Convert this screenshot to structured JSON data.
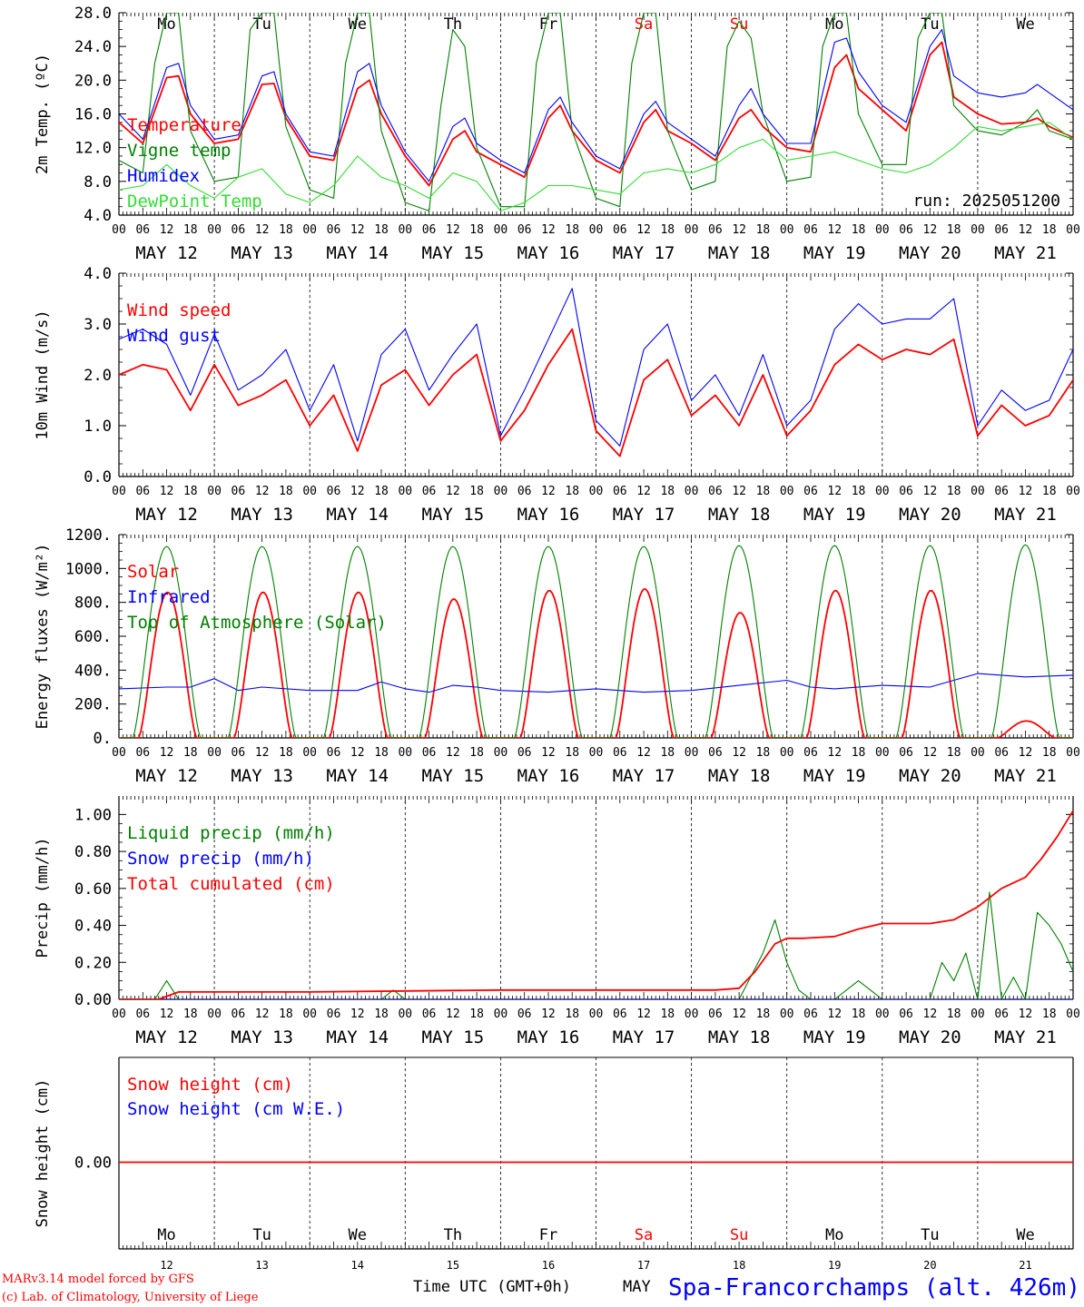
{
  "footer": {
    "model_line": "MARv3.14 model forced by GFS",
    "credit_line": "(c) Lab. of Climatology, University of Liege",
    "xaxis_title": "Time UTC (GMT+0h)",
    "xaxis_month": "MAY",
    "station": "Spa-Francorchamps (alt. 426m)"
  },
  "colors": {
    "red": "#ff0000",
    "green": "#008000",
    "blue": "#0000ff",
    "lightgreen": "#33dd33",
    "axis": "#000000"
  },
  "days": {
    "top_names": [
      "Mo",
      "Tu",
      "We",
      "Th",
      "Fr",
      "Sa",
      "Su",
      "Mo",
      "Tu",
      "We"
    ],
    "weekend_flags": [
      false,
      false,
      false,
      false,
      false,
      true,
      true,
      false,
      false,
      false
    ],
    "date_labels": [
      "MAY 12",
      "MAY 13",
      "MAY 14",
      "MAY 15",
      "MAY 16",
      "MAY 17",
      "MAY 18",
      "MAY 19",
      "MAY 20",
      "MAY 21"
    ],
    "day_numbers": [
      "12",
      "13",
      "14",
      "15",
      "16",
      "17",
      "18",
      "19",
      "20",
      "21"
    ],
    "hour_ticks": [
      "00",
      "06",
      "12",
      "18"
    ],
    "end_tick": "00"
  },
  "chart_data": [
    {
      "id": "temperature",
      "type": "line",
      "ylabel": "2m Temp. (ºC)",
      "ylim": [
        4.0,
        28.0
      ],
      "yticks": [
        "4.0",
        "8.0",
        "12.0",
        "16.0",
        "20.0",
        "24.0",
        "28.0"
      ],
      "xlim_hours": [
        0,
        240
      ],
      "run_label": "run: 2025051200",
      "series": [
        {
          "name": "Temperature",
          "color": "red",
          "x": [
            0,
            6,
            12,
            15,
            18,
            24,
            30,
            36,
            39,
            42,
            48,
            54,
            60,
            63,
            66,
            72,
            78,
            84,
            87,
            90,
            96,
            102,
            108,
            111,
            114,
            120,
            126,
            132,
            135,
            138,
            144,
            150,
            156,
            159,
            162,
            168,
            174,
            180,
            183,
            186,
            192,
            198,
            204,
            207,
            210,
            216,
            222,
            228,
            231,
            234,
            240
          ],
          "y": [
            15.0,
            12.5,
            20.3,
            20.5,
            16.0,
            12.5,
            13.0,
            19.5,
            19.6,
            15.5,
            11.0,
            10.5,
            19.0,
            20.0,
            16.0,
            11.0,
            7.5,
            13.0,
            14.0,
            11.5,
            10.0,
            8.5,
            15.5,
            17.0,
            14.0,
            10.5,
            9.0,
            15.0,
            16.5,
            14.0,
            12.5,
            10.5,
            15.5,
            16.5,
            14.5,
            12.0,
            11.5,
            21.5,
            23.0,
            19.0,
            16.5,
            14.0,
            23.0,
            24.5,
            18.0,
            16.0,
            14.8,
            15.0,
            15.5,
            14.5,
            13.2
          ]
        },
        {
          "name": "Vigne temp",
          "color": "green",
          "x": [
            0,
            6,
            9,
            12,
            15,
            18,
            24,
            30,
            33,
            36,
            39,
            42,
            48,
            54,
            57,
            60,
            63,
            66,
            72,
            78,
            81,
            84,
            87,
            90,
            96,
            102,
            105,
            108,
            111,
            114,
            120,
            126,
            129,
            132,
            135,
            138,
            144,
            150,
            153,
            156,
            159,
            162,
            168,
            174,
            177,
            180,
            183,
            186,
            192,
            198,
            201,
            204,
            207,
            210,
            216,
            222,
            228,
            231,
            234,
            240
          ],
          "y": [
            10.5,
            9.0,
            22.0,
            28.0,
            28.0,
            14.0,
            8.0,
            8.5,
            26.0,
            28.0,
            28.0,
            14.5,
            7.0,
            6.0,
            22.0,
            28.0,
            28.0,
            14.0,
            5.5,
            4.5,
            17.0,
            26.0,
            24.0,
            12.0,
            5.0,
            5.0,
            22.0,
            28.0,
            28.0,
            14.0,
            6.0,
            5.0,
            22.0,
            28.0,
            28.0,
            14.0,
            7.0,
            8.0,
            24.0,
            27.0,
            25.0,
            16.0,
            8.0,
            8.5,
            24.0,
            28.0,
            28.0,
            16.0,
            10.0,
            10.0,
            25.0,
            28.0,
            28.0,
            17.0,
            14.0,
            13.5,
            15.0,
            16.5,
            14.0,
            13.0
          ]
        },
        {
          "name": "Humidex",
          "color": "blue",
          "x": [
            0,
            6,
            12,
            15,
            18,
            24,
            30,
            36,
            39,
            42,
            48,
            54,
            60,
            63,
            66,
            72,
            78,
            84,
            87,
            90,
            96,
            102,
            108,
            111,
            114,
            120,
            126,
            132,
            135,
            138,
            144,
            150,
            156,
            159,
            162,
            168,
            174,
            180,
            183,
            186,
            192,
            198,
            204,
            207,
            210,
            216,
            222,
            228,
            231,
            234,
            240
          ],
          "y": [
            16.0,
            13.0,
            21.5,
            22.0,
            17.0,
            13.0,
            13.5,
            20.5,
            21.0,
            16.0,
            11.5,
            11.0,
            21.0,
            22.0,
            17.0,
            11.5,
            8.0,
            14.5,
            15.5,
            12.5,
            10.5,
            9.0,
            16.5,
            18.0,
            15.0,
            11.0,
            9.5,
            16.0,
            17.5,
            15.0,
            13.0,
            11.0,
            17.0,
            19.0,
            16.0,
            12.5,
            12.5,
            24.5,
            25.0,
            21.0,
            17.0,
            15.0,
            24.0,
            26.0,
            20.5,
            18.5,
            18.0,
            18.5,
            19.5,
            18.5,
            16.5
          ]
        },
        {
          "name": "DewPoint Temp",
          "color": "lightgreen",
          "x": [
            0,
            6,
            12,
            18,
            24,
            30,
            36,
            42,
            48,
            54,
            60,
            66,
            72,
            78,
            84,
            90,
            96,
            102,
            108,
            114,
            120,
            126,
            132,
            138,
            144,
            150,
            156,
            162,
            168,
            174,
            180,
            186,
            192,
            198,
            204,
            210,
            216,
            222,
            228,
            234,
            240
          ],
          "y": [
            7.0,
            7.5,
            10.0,
            7.5,
            6.0,
            8.5,
            9.5,
            6.5,
            5.5,
            7.5,
            11.0,
            8.5,
            7.5,
            6.0,
            9.0,
            8.0,
            4.5,
            5.5,
            7.5,
            7.5,
            7.0,
            6.5,
            9.0,
            9.5,
            9.0,
            10.0,
            12.0,
            13.0,
            10.5,
            11.0,
            11.5,
            10.5,
            9.5,
            9.0,
            10.0,
            12.0,
            14.5,
            14.0,
            14.5,
            15.0,
            13.0
          ]
        }
      ]
    },
    {
      "id": "wind",
      "type": "line",
      "ylabel": "10m Wind (m/s)",
      "ylim": [
        0.0,
        4.0
      ],
      "yticks": [
        "0.0",
        "1.0",
        "2.0",
        "3.0",
        "4.0"
      ],
      "xlim_hours": [
        0,
        240
      ],
      "series": [
        {
          "name": "Wind speed",
          "color": "red",
          "x": [
            0,
            6,
            12,
            18,
            24,
            30,
            36,
            42,
            48,
            54,
            60,
            66,
            72,
            78,
            84,
            90,
            96,
            102,
            108,
            114,
            120,
            126,
            132,
            138,
            144,
            150,
            156,
            162,
            168,
            174,
            180,
            186,
            192,
            198,
            204,
            210,
            216,
            222,
            228,
            234,
            240
          ],
          "y": [
            2.0,
            2.2,
            2.1,
            1.3,
            2.2,
            1.4,
            1.6,
            1.9,
            1.0,
            1.6,
            0.5,
            1.8,
            2.1,
            1.4,
            2.0,
            2.4,
            0.7,
            1.3,
            2.2,
            2.9,
            0.9,
            0.4,
            1.9,
            2.3,
            1.2,
            1.6,
            1.0,
            2.0,
            0.8,
            1.3,
            2.2,
            2.6,
            2.3,
            2.5,
            2.4,
            2.7,
            0.8,
            1.4,
            1.0,
            1.2,
            1.9
          ]
        },
        {
          "name": "Wind gust",
          "color": "blue",
          "x": [
            0,
            6,
            12,
            18,
            24,
            30,
            36,
            42,
            48,
            54,
            60,
            66,
            72,
            78,
            84,
            90,
            96,
            102,
            108,
            114,
            120,
            126,
            132,
            138,
            144,
            150,
            156,
            162,
            168,
            174,
            180,
            186,
            192,
            198,
            204,
            210,
            216,
            222,
            228,
            234,
            240
          ],
          "y": [
            2.7,
            2.9,
            2.6,
            1.6,
            2.8,
            1.7,
            2.0,
            2.5,
            1.3,
            2.2,
            0.7,
            2.4,
            2.9,
            1.7,
            2.4,
            3.0,
            0.8,
            1.7,
            2.7,
            3.7,
            1.1,
            0.6,
            2.5,
            3.0,
            1.5,
            2.0,
            1.2,
            2.4,
            1.0,
            1.5,
            2.9,
            3.4,
            3.0,
            3.1,
            3.1,
            3.5,
            1.0,
            1.7,
            1.3,
            1.5,
            2.5
          ]
        }
      ]
    },
    {
      "id": "energy",
      "type": "line",
      "ylabel": "Energy fluxes (W/m²)",
      "ylim": [
        0,
        1200
      ],
      "yticks": [
        "0.",
        "200.",
        "400.",
        "600.",
        "800.",
        "1000.",
        "1200."
      ],
      "xlim_hours": [
        0,
        240
      ],
      "peaks": {
        "solar": [
          860,
          860,
          860,
          820,
          870,
          880,
          740,
          870,
          870,
          100
        ],
        "toa": [
          1130,
          1130,
          1130,
          1130,
          1130,
          1130,
          1135,
          1135,
          1135,
          1140
        ]
      },
      "series": [
        {
          "name": "Solar",
          "color": "red"
        },
        {
          "name": "Infrared",
          "color": "blue",
          "x": [
            0,
            12,
            18,
            24,
            30,
            36,
            48,
            60,
            66,
            72,
            78,
            84,
            90,
            96,
            108,
            120,
            132,
            144,
            156,
            168,
            174,
            180,
            192,
            204,
            210,
            216,
            228,
            240
          ],
          "y": [
            290,
            300,
            300,
            350,
            280,
            300,
            280,
            280,
            330,
            290,
            270,
            310,
            300,
            280,
            270,
            290,
            270,
            280,
            310,
            340,
            300,
            290,
            310,
            300,
            340,
            380,
            360,
            370
          ]
        },
        {
          "name": "Top of Atmosphere (Solar)",
          "color": "green"
        }
      ]
    },
    {
      "id": "precip",
      "type": "line",
      "ylabel": "Precip (mm/h)",
      "ylim": [
        0.0,
        1.1
      ],
      "yticks": [
        "0.00",
        "0.20",
        "0.40",
        "0.60",
        "0.80",
        "1.00"
      ],
      "xlim_hours": [
        0,
        240
      ],
      "series": [
        {
          "name": "Liquid precip (mm/h)",
          "color": "green",
          "x": [
            0,
            9,
            12,
            15,
            18,
            66,
            69,
            72,
            156,
            162,
            165,
            168,
            171,
            174,
            180,
            186,
            189,
            192,
            204,
            207,
            210,
            213,
            216,
            219,
            222,
            225,
            228,
            231,
            234,
            237,
            240
          ],
          "y": [
            0,
            0,
            0.1,
            0,
            0,
            0,
            0.05,
            0,
            0,
            0.25,
            0.43,
            0.2,
            0.05,
            0,
            0,
            0.1,
            0.05,
            0,
            0,
            0.2,
            0.1,
            0.25,
            0,
            0.58,
            0,
            0.12,
            0,
            0.47,
            0.4,
            0.3,
            0.15
          ]
        },
        {
          "name": "Snow precip (mm/h)",
          "color": "blue",
          "x": [
            0,
            240
          ],
          "y": [
            0,
            0
          ]
        },
        {
          "name": "Total cumulated (cm)",
          "color": "red",
          "x": [
            0,
            10,
            15,
            24,
            48,
            72,
            96,
            120,
            144,
            150,
            156,
            160,
            165,
            168,
            172,
            180,
            186,
            192,
            204,
            210,
            216,
            222,
            228,
            232,
            236,
            240
          ],
          "y": [
            0,
            0,
            0.04,
            0.04,
            0.04,
            0.045,
            0.05,
            0.05,
            0.05,
            0.05,
            0.06,
            0.15,
            0.3,
            0.33,
            0.33,
            0.34,
            0.38,
            0.41,
            0.41,
            0.43,
            0.5,
            0.6,
            0.66,
            0.76,
            0.88,
            1.02
          ]
        }
      ]
    },
    {
      "id": "snow",
      "type": "line",
      "ylabel": "Snow height (cm)",
      "yticks": [
        "0.00"
      ],
      "xlim_hours": [
        0,
        240
      ],
      "series": [
        {
          "name": "Snow height (cm)",
          "color": "red",
          "x": [
            0,
            240
          ],
          "y": [
            0,
            0
          ]
        },
        {
          "name": "Snow height (cm W.E.)",
          "color": "blue"
        }
      ]
    }
  ]
}
